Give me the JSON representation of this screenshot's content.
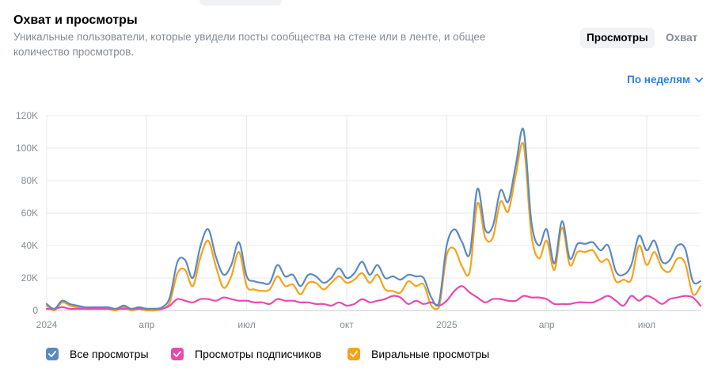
{
  "header": {
    "title": "Охват и просмотры",
    "subtitle": "Уникальные пользователи, которые увидели посты сообщества на стене или в ленте, и общее количество просмотров."
  },
  "toggles": {
    "views_label": "Просмотры",
    "reach_label": "Охват",
    "active": "views"
  },
  "period": {
    "label": "По неделям"
  },
  "legend": {
    "items": [
      {
        "label": "Все просмотры",
        "color": "#5c89c2"
      },
      {
        "label": "Просмотры подписчиков",
        "color": "#e64ab0"
      },
      {
        "label": "Виральные просмотры",
        "color": "#f7a21b"
      }
    ]
  },
  "chart_data": {
    "type": "line",
    "x_ticks": [
      "2024",
      "апр",
      "июл",
      "окт",
      "2025",
      "апр",
      "июл"
    ],
    "x_tick_positions": [
      0,
      13,
      26,
      39,
      52,
      65,
      78
    ],
    "ylim": [
      0,
      120000
    ],
    "y_ticks": [
      "0",
      "20K",
      "40K",
      "60K",
      "80K",
      "100K",
      "120K"
    ],
    "y_tick_values": [
      0,
      20000,
      40000,
      60000,
      80000,
      100000,
      120000
    ],
    "grid": true,
    "x": [
      0,
      1,
      2,
      3,
      4,
      5,
      6,
      7,
      8,
      9,
      10,
      11,
      12,
      13,
      14,
      15,
      16,
      17,
      18,
      19,
      20,
      21,
      22,
      23,
      24,
      25,
      26,
      27,
      28,
      29,
      30,
      31,
      32,
      33,
      34,
      35,
      36,
      37,
      38,
      39,
      40,
      41,
      42,
      43,
      44,
      45,
      46,
      47,
      48,
      49,
      50,
      51,
      52,
      53,
      54,
      55,
      56,
      57,
      58,
      59,
      60,
      61,
      62,
      63,
      64,
      65,
      66,
      67,
      68,
      69,
      70,
      71,
      72,
      73,
      74,
      75,
      76,
      77,
      78,
      79,
      80,
      81,
      82,
      83,
      84,
      85
    ],
    "series": [
      {
        "name": "Все просмотры",
        "color": "#5c89c2",
        "values": [
          4000,
          1000,
          6000,
          4000,
          3000,
          2000,
          2000,
          2000,
          2000,
          1000,
          3000,
          1000,
          2000,
          1000,
          1000,
          2000,
          8000,
          30000,
          31000,
          20000,
          40000,
          50000,
          33000,
          22000,
          28000,
          42000,
          21000,
          18000,
          17000,
          17000,
          28000,
          21000,
          22000,
          15000,
          22000,
          21000,
          17000,
          20000,
          26000,
          20000,
          23000,
          30000,
          22000,
          28000,
          20000,
          21000,
          19000,
          22000,
          21000,
          20000,
          8000,
          5000,
          40000,
          50000,
          42000,
          35000,
          75000,
          50000,
          52000,
          74000,
          67000,
          90000,
          111000,
          55000,
          40000,
          50000,
          29000,
          55000,
          32000,
          41000,
          41000,
          42000,
          37000,
          40000,
          24000,
          22000,
          28000,
          46000,
          37000,
          43000,
          30000,
          31000,
          40000,
          38000,
          18000,
          18000
        ]
      },
      {
        "name": "Просмотры подписчиков",
        "color": "#e64ab0",
        "values": [
          1000,
          1000,
          2000,
          1000,
          1000,
          1000,
          1000,
          1000,
          1000,
          1000,
          1000,
          1000,
          1000,
          1000,
          1000,
          1000,
          3000,
          7000,
          6000,
          5000,
          7000,
          7000,
          6000,
          8000,
          7000,
          6000,
          6000,
          5000,
          5000,
          4000,
          7000,
          6000,
          6000,
          5000,
          5000,
          4000,
          4000,
          3000,
          5000,
          3000,
          4000,
          7000,
          5000,
          6000,
          7000,
          9000,
          8000,
          4000,
          6000,
          4000,
          5000,
          3000,
          6000,
          12000,
          15000,
          11000,
          8000,
          5000,
          7000,
          7000,
          6000,
          6000,
          9000,
          8000,
          8000,
          7000,
          4000,
          4000,
          4000,
          5000,
          5000,
          5000,
          7000,
          9000,
          6000,
          3000,
          9000,
          6000,
          9000,
          7000,
          4000,
          7000,
          8000,
          9000,
          8000,
          3000
        ]
      },
      {
        "name": "Виральные просмотры",
        "color": "#f7a21b",
        "values": [
          3000,
          0,
          5000,
          3000,
          2000,
          1000,
          1000,
          1000,
          1000,
          0,
          2000,
          0,
          1000,
          0,
          0,
          1000,
          5000,
          23000,
          25000,
          15000,
          33000,
          43000,
          27000,
          14000,
          21000,
          36000,
          15000,
          13000,
          12000,
          13000,
          21000,
          15000,
          16000,
          10000,
          17000,
          17000,
          13000,
          17000,
          21000,
          17000,
          19000,
          23000,
          17000,
          22000,
          13000,
          12000,
          11000,
          18000,
          15000,
          16000,
          3000,
          2000,
          34000,
          38000,
          27000,
          24000,
          66000,
          45000,
          45000,
          67000,
          61000,
          84000,
          102000,
          47000,
          32000,
          43000,
          25000,
          51000,
          28000,
          36000,
          36000,
          37000,
          30000,
          31000,
          18000,
          19000,
          19000,
          40000,
          28000,
          36000,
          26000,
          24000,
          32000,
          29000,
          10000,
          15000
        ]
      }
    ]
  }
}
